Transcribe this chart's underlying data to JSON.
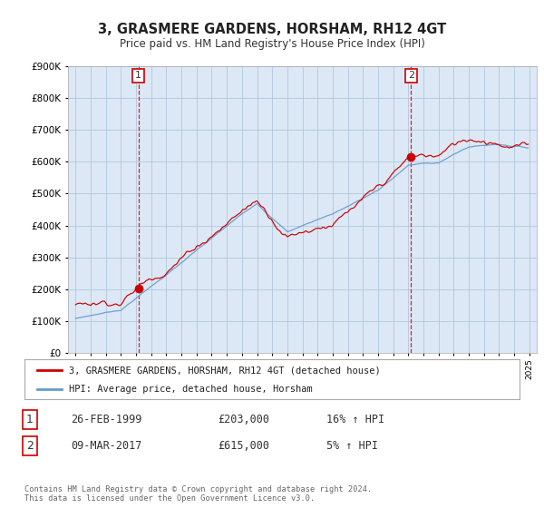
{
  "title": "3, GRASMERE GARDENS, HORSHAM, RH12 4GT",
  "subtitle": "Price paid vs. HM Land Registry's House Price Index (HPI)",
  "ylim": [
    0,
    900000
  ],
  "yticks": [
    0,
    100000,
    200000,
    300000,
    400000,
    500000,
    600000,
    700000,
    800000,
    900000
  ],
  "line1_color": "#cc0000",
  "line2_color": "#6699cc",
  "vline_color": "#dd0000",
  "marker_color": "#cc0000",
  "plot_bg_color": "#dce8f5",
  "transaction1_year": 1999.15,
  "transaction1_price": 203000,
  "transaction2_year": 2017.18,
  "transaction2_price": 615000,
  "legend_line1": "3, GRASMERE GARDENS, HORSHAM, RH12 4GT (detached house)",
  "legend_line2": "HPI: Average price, detached house, Horsham",
  "table_row1": [
    "1",
    "26-FEB-1999",
    "£203,000",
    "16% ↑ HPI"
  ],
  "table_row2": [
    "2",
    "09-MAR-2017",
    "£615,000",
    "5% ↑ HPI"
  ],
  "footer": "Contains HM Land Registry data © Crown copyright and database right 2024.\nThis data is licensed under the Open Government Licence v3.0.",
  "background_color": "#ffffff",
  "grid_color": "#b0c8e0"
}
